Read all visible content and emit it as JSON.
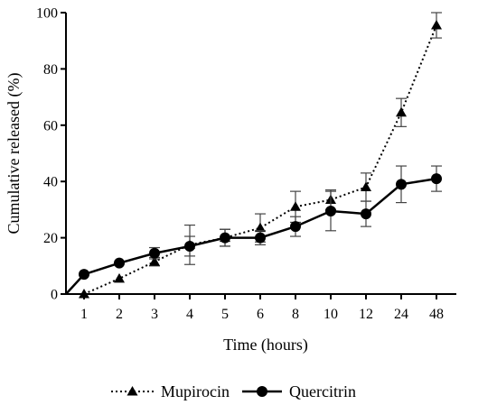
{
  "chart_data": {
    "type": "line",
    "xlabel": "Time (hours)",
    "ylabel": "Cumulative released (%)",
    "categories": [
      "1",
      "2",
      "3",
      "4",
      "5",
      "6",
      "8",
      "10",
      "12",
      "24",
      "48"
    ],
    "yticks": [
      "0",
      "20",
      "40",
      "60",
      "80",
      "100"
    ],
    "ylim": [
      0,
      100
    ],
    "grid": false,
    "legend_position": "bottom",
    "series": [
      {
        "name": "Mupirocin",
        "style": "dotted",
        "marker": "triangle",
        "values": [
          0,
          5.5,
          11.5,
          17.5,
          20,
          23.5,
          31,
          33.5,
          38,
          64.5,
          95.5
        ],
        "errors": [
          0,
          0,
          1.5,
          7,
          3,
          5,
          5.5,
          3.5,
          5,
          5,
          4.5
        ]
      },
      {
        "name": "Quercitrin",
        "style": "solid",
        "marker": "circle",
        "values": [
          7,
          11,
          14.5,
          17,
          20,
          20,
          24,
          29.5,
          28.5,
          39,
          41
        ],
        "errors": [
          0,
          0,
          2,
          3.5,
          3,
          2.5,
          3.5,
          7,
          4.5,
          6.5,
          4.5
        ]
      }
    ],
    "colors": {
      "line": "#000000"
    }
  }
}
